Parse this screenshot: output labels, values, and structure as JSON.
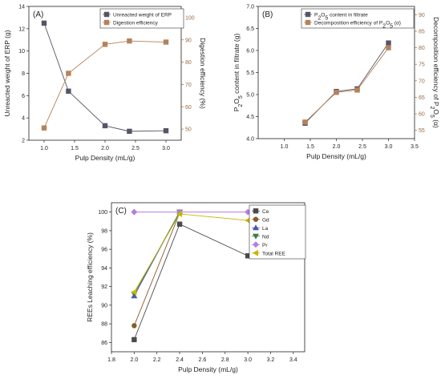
{
  "chart_data": [
    {
      "panel": "(A)",
      "type": "line",
      "xlabel": "Pulp Density (mL/g)",
      "ylabel": "Unreacted weight of ERP (g)",
      "ylabel_right": "Digestion efficiency (%)",
      "xlim": [
        0.75,
        3.25
      ],
      "ylim": [
        2,
        14
      ],
      "ylim_right": [
        45,
        105
      ],
      "x_ticks": [
        "1.0",
        "1.5",
        "2.0",
        "2.5",
        "3.0"
      ],
      "y_ticks": [
        "2",
        "4",
        "6",
        "8",
        "10",
        "12",
        "14"
      ],
      "y_ticks_right": [
        "50",
        "60",
        "70",
        "80",
        "90",
        "100"
      ],
      "legend_position": "top-right",
      "series": [
        {
          "name": "Unreacted weight of ERP",
          "axis": "left",
          "color": "#555566",
          "marker": "square",
          "x": [
            1.0,
            1.4,
            2.0,
            2.4,
            3.0
          ],
          "values": [
            12.5,
            6.4,
            3.3,
            2.8,
            2.85
          ]
        },
        {
          "name": "Digestion efficiency",
          "axis": "right",
          "color": "#b5825a",
          "marker": "square",
          "x": [
            1.0,
            1.4,
            2.0,
            2.4,
            3.0
          ],
          "values": [
            50.5,
            75,
            88,
            89.5,
            89
          ]
        }
      ]
    },
    {
      "panel": "(B)",
      "type": "line",
      "xlabel": "Pulp Density (mL/g)",
      "ylabel": "P2O5 content in filtrate (g)",
      "ylabel_right": "Decomposition efficiency of P2O5 (α)",
      "xlim": [
        0.5,
        3.5
      ],
      "ylim": [
        4.0,
        7.0
      ],
      "ylim_right": [
        52.5,
        92.5
      ],
      "x_ticks": [
        "1.0",
        "1.5",
        "2.0",
        "2.5",
        "3.0",
        "3.5"
      ],
      "y_ticks": [
        "4.0",
        "4.5",
        "5.0",
        "5.5",
        "6.0",
        "6.5",
        "7.0"
      ],
      "y_ticks_right": [
        "55",
        "60",
        "65",
        "70",
        "75",
        "80",
        "85",
        "90"
      ],
      "legend_position": "top-right",
      "series": [
        {
          "name": "P2O5 content in filtrate",
          "axis": "left",
          "color": "#555566",
          "marker": "square",
          "x": [
            1.4,
            2.0,
            2.4,
            3.0
          ],
          "values": [
            4.35,
            5.07,
            5.13,
            6.17
          ]
        },
        {
          "name": "Decomposition efficiency of P2O5 (α)",
          "axis": "right",
          "color": "#b5825a",
          "marker": "square",
          "x": [
            1.4,
            2.0,
            2.4,
            3.0
          ],
          "values": [
            57.5,
            66.5,
            67.2,
            80
          ]
        }
      ]
    },
    {
      "panel": "(C)",
      "type": "line",
      "xlabel": "Pulp Density (mL/g)",
      "ylabel": "REEs Leaching efficiency (%)",
      "xlim": [
        1.8,
        3.5
      ],
      "ylim": [
        85,
        101
      ],
      "x_ticks": [
        "1.8",
        "2.0",
        "2.2",
        "2.4",
        "2.6",
        "2.8",
        "3.0",
        "3.2",
        "3.4"
      ],
      "y_ticks": [
        "86",
        "88",
        "90",
        "92",
        "94",
        "96",
        "98",
        "100"
      ],
      "legend_position": "top-right",
      "series": [
        {
          "name": "Ce",
          "color": "#4a4a4a",
          "marker": "square",
          "x": [
            2.0,
            2.4,
            3.0
          ],
          "values": [
            86.3,
            98.7,
            95.3
          ]
        },
        {
          "name": "Gd",
          "color": "#8b5a2b",
          "marker": "circle",
          "x": [
            2.0,
            2.4
          ],
          "values": [
            87.8,
            99.9
          ]
        },
        {
          "name": "La",
          "color": "#4b55b8",
          "marker": "triangle-up",
          "x": [
            2.0,
            2.4
          ],
          "values": [
            91.0,
            100.0
          ]
        },
        {
          "name": "Nd",
          "color": "#3f7a4a",
          "marker": "triangle-down",
          "x": [
            2.0,
            2.4
          ],
          "values": [
            91.2,
            100.0
          ]
        },
        {
          "name": "Pr",
          "color": "#b77de0",
          "marker": "diamond",
          "x": [
            2.0,
            2.4,
            3.0
          ],
          "values": [
            100.0,
            100.0,
            100.0
          ]
        },
        {
          "name": "Total REE",
          "color": "#c9b400",
          "marker": "triangle-left",
          "x": [
            2.0,
            2.4,
            3.0
          ],
          "values": [
            91.4,
            99.8,
            99.1
          ]
        }
      ]
    }
  ]
}
